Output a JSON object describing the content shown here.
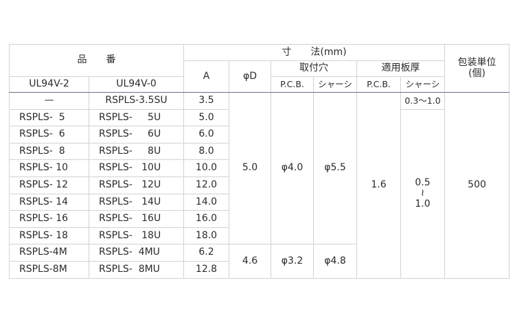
{
  "header": {
    "part_number": "品　　番",
    "ul94v2": "UL94V-2",
    "ul94v0": "UL94V-0",
    "dimensions": "寸　　法(mm)",
    "a": "A",
    "phi_d": "φD",
    "mounting_hole": "取付穴",
    "applicable_thickness": "適用板厚",
    "pcb": "P.C.B.",
    "chassis": "シャーシ",
    "package_unit": "包装単位",
    "package_unit_sub": "(個)"
  },
  "rows": [
    {
      "v2": "—",
      "v0": "RSPLS-3.5SU",
      "a": "3.5"
    },
    {
      "v2": "RSPLS-  5",
      "v0": "RSPLS-     5U",
      "a": "5.0"
    },
    {
      "v2": "RSPLS-  6",
      "v0": "RSPLS-     6U",
      "a": "6.0"
    },
    {
      "v2": "RSPLS-  8",
      "v0": "RSPLS-     8U",
      "a": "8.0"
    },
    {
      "v2": "RSPLS- 10",
      "v0": "RSPLS-   10U",
      "a": "10.0"
    },
    {
      "v2": "RSPLS- 12",
      "v0": "RSPLS-   12U",
      "a": "12.0"
    },
    {
      "v2": "RSPLS- 14",
      "v0": "RSPLS-   14U",
      "a": "14.0"
    },
    {
      "v2": "RSPLS- 16",
      "v0": "RSPLS-   16U",
      "a": "16.0"
    },
    {
      "v2": "RSPLS- 18",
      "v0": "RSPLS-   18U",
      "a": "18.0"
    },
    {
      "v2": "RSPLS-4M",
      "v0": "RSPLS-  4MU",
      "a": "6.2"
    },
    {
      "v2": "RSPLS-8M",
      "v0": "RSPLS-  8MU",
      "a": "12.8"
    }
  ],
  "groups": {
    "phi_d_1": "5.0",
    "phi_d_2": "4.6",
    "hole_pcb_1": "φ4.0",
    "hole_pcb_2": "φ3.2",
    "hole_chassis_1": "φ5.5",
    "hole_chassis_2": "φ4.8",
    "thick_pcb": "1.6",
    "thick_chassis_1": "0.3〜1.0",
    "thick_chassis_2_from": "0.5",
    "thick_chassis_2_sep": "≀",
    "thick_chassis_2_to": "1.0",
    "package": "500"
  }
}
